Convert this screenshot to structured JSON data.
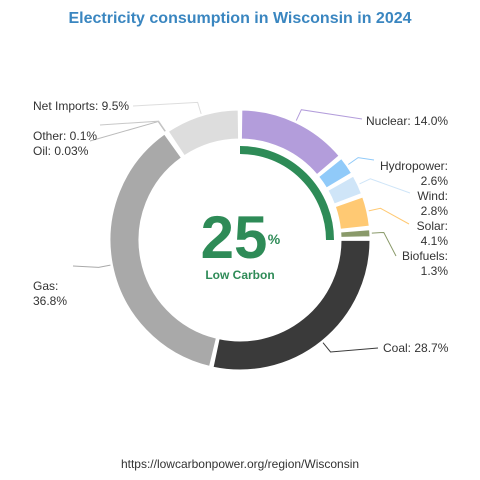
{
  "title": "Electricity consumption in Wisconsin in 2024",
  "source": "https://lowcarbonpower.org/region/Wisconsin",
  "center": {
    "value": "25",
    "unit": "%",
    "label": "Low Carbon",
    "color": "#2e8b57"
  },
  "chart_data": {
    "type": "pie",
    "donut": true,
    "unit": "%",
    "low_carbon_share": 25,
    "slices": [
      {
        "name": "Nuclear",
        "label": "Nuclear: 14.0%",
        "value": 14.0,
        "color": "#b39ddb"
      },
      {
        "name": "Hydropower",
        "label": "Hydropower: 2.6%",
        "value": 2.6,
        "color": "#90caf9"
      },
      {
        "name": "Wind",
        "label": "Wind: 2.8%",
        "value": 2.8,
        "color": "#cfe5f8"
      },
      {
        "name": "Solar",
        "label": "Solar: 4.1%",
        "value": 4.1,
        "color": "#ffc973"
      },
      {
        "name": "Biofuels",
        "label": "Biofuels: 1.3%",
        "value": 1.3,
        "color": "#8a9a6a"
      },
      {
        "name": "Coal",
        "label": "Coal: 28.7%",
        "value": 28.7,
        "color": "#3a3a3a"
      },
      {
        "name": "Gas",
        "label": "Gas: 36.8%",
        "value": 36.8,
        "color": "#a9a9a9"
      },
      {
        "name": "Oil",
        "label": "Oil: 0.03%",
        "value": 0.03,
        "color": "#bbbbbb"
      },
      {
        "name": "Other",
        "label": "Other: 0.1%",
        "value": 0.1,
        "color": "#c8c8c8"
      },
      {
        "name": "Net Imports",
        "label": "Net Imports: 9.5%",
        "value": 9.5,
        "color": "#dddddd"
      }
    ]
  }
}
